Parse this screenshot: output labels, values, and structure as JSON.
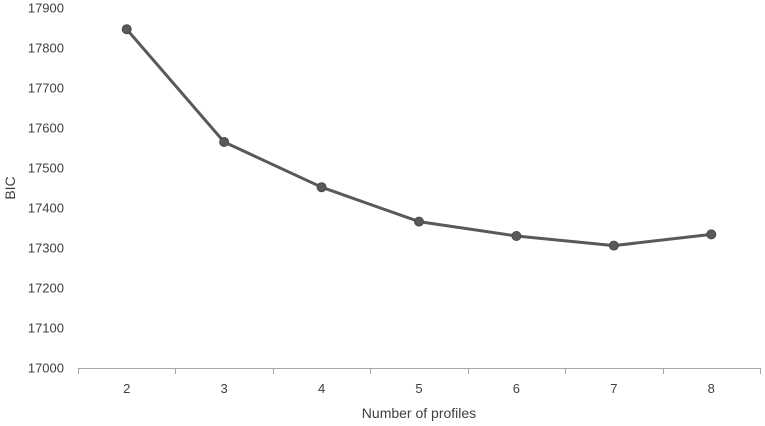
{
  "chart_data": {
    "type": "line",
    "title": "",
    "xlabel": "Number of profiles",
    "ylabel": "BIC",
    "x": [
      2,
      3,
      4,
      5,
      6,
      7,
      8
    ],
    "categories": [
      "2",
      "3",
      "4",
      "5",
      "6",
      "7",
      "8"
    ],
    "series": [
      {
        "values": [
          17847,
          17565,
          17452,
          17366,
          17330,
          17306,
          17334
        ]
      }
    ],
    "ylim": [
      17000,
      17900
    ],
    "yticks": [
      17000,
      17100,
      17200,
      17300,
      17400,
      17500,
      17600,
      17700,
      17800,
      17900
    ],
    "grid": false,
    "legend": "none",
    "colors": {
      "line": "#595959",
      "marker": "#595959",
      "axis": "#a6a6a6",
      "text": "#404040"
    }
  }
}
